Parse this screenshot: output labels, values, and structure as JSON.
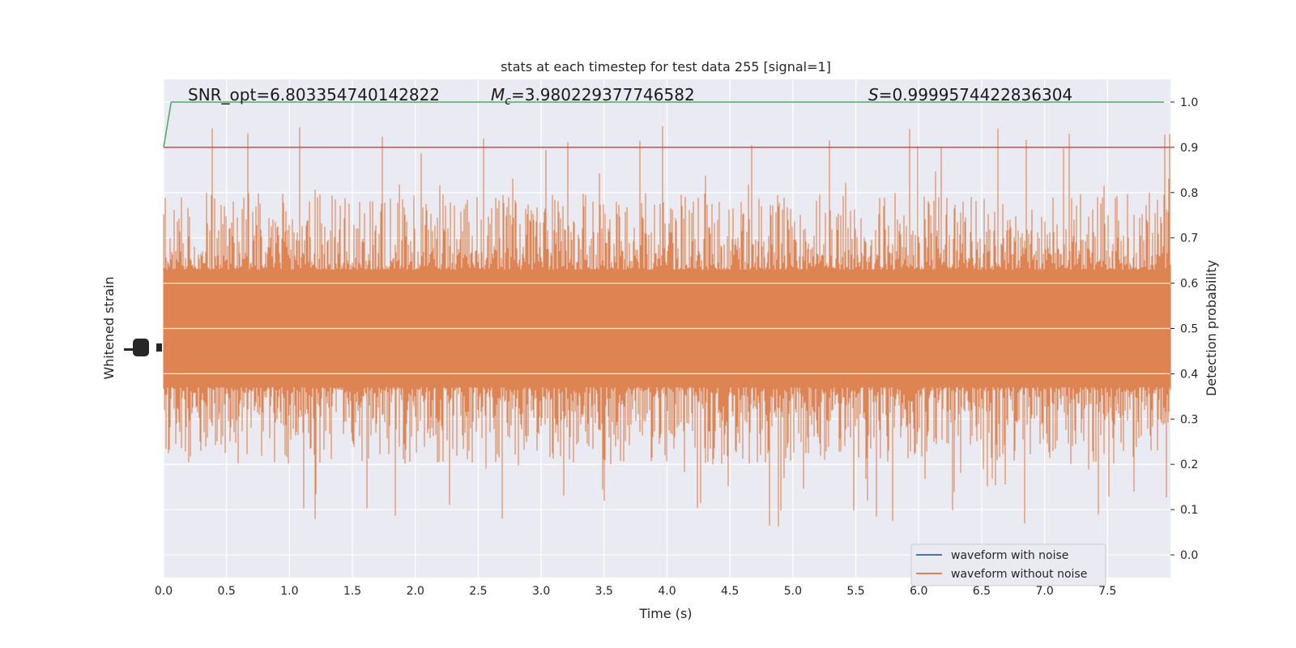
{
  "chart_data": {
    "type": "line",
    "title": "stats at each timestep for test data 255 [signal=1]",
    "xlabel": "Time (s)",
    "ylabel_left": "Whitened strain",
    "ylabel_right": "Detection probability",
    "xlim": [
      0,
      8
    ],
    "ylim_right": [
      -0.05,
      1.05
    ],
    "x_ticks": [
      "0.0",
      "0.5",
      "1.0",
      "1.5",
      "2.0",
      "2.5",
      "3.0",
      "3.5",
      "4.0",
      "4.5",
      "5.0",
      "5.5",
      "6.0",
      "6.5",
      "7.0",
      "7.5"
    ],
    "y_ticks_right": [
      "0.0",
      "0.1",
      "0.2",
      "0.3",
      "0.4",
      "0.5",
      "0.6",
      "0.7",
      "0.8",
      "0.9",
      "1.0"
    ],
    "grid": true,
    "annotations": {
      "snr": "SNR_opt=6.803354740142822",
      "mc_symbol": "M",
      "mc_sub": "c",
      "mc_value": "=3.980229377746582",
      "s_symbol": "S",
      "s_value": "=0.9999574422836304"
    },
    "series": [
      {
        "name": "waveform with noise",
        "color": "#4c72b0",
        "style": "noise band, fully covered"
      },
      {
        "name": "waveform without noise",
        "color": "#dd8452",
        "style": "dense noisy signal, main band 0.4-0.6, spikes to ~1.0 and dips to ~0.0"
      }
    ],
    "threshold": {
      "value": 0.9,
      "color": "#c44e52"
    },
    "detection_probability": {
      "color": "#55a868",
      "x": [
        0.0,
        0.06,
        7.95
      ],
      "y": [
        0.9,
        1.0,
        1.0
      ]
    },
    "legend": "lower-right",
    "colors": {
      "background": "#eaeaf2",
      "grid": "#ffffff"
    }
  }
}
